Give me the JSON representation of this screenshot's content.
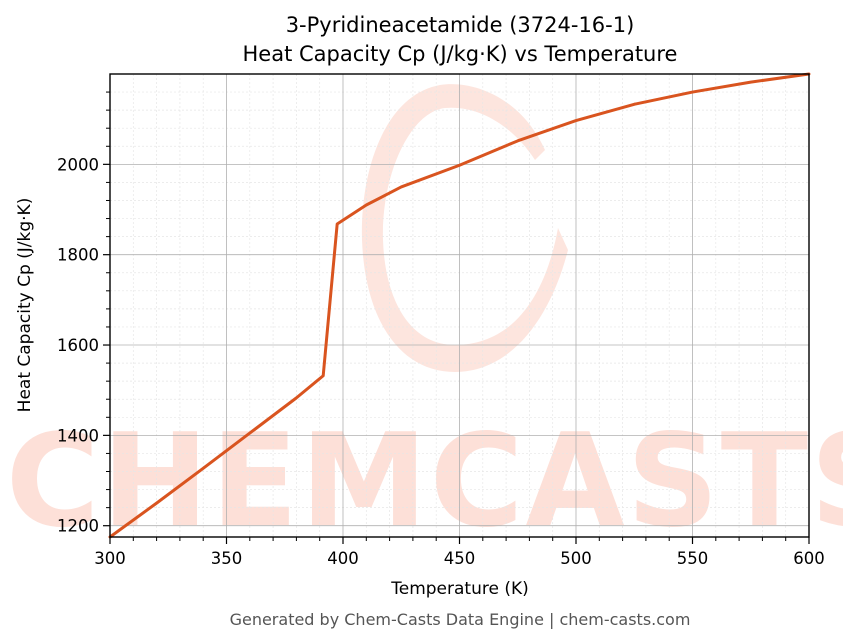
{
  "chart_data": {
    "type": "line",
    "title": "3-Pyridineacetamide (3724-16-1)",
    "subtitle": "Heat Capacity Cp (J/kg·K) vs Temperature",
    "xlabel": "Temperature (K)",
    "ylabel": "Heat Capacity Cp (J/kg·K)",
    "xlim": [
      300,
      600
    ],
    "ylim": [
      1175,
      2200
    ],
    "xticks": [
      300,
      350,
      400,
      450,
      500,
      550,
      600
    ],
    "yticks": [
      1200,
      1400,
      1600,
      1800,
      2000
    ],
    "grid": true,
    "series": [
      {
        "color": "#d9541f",
        "x": [
          300,
          320,
          340,
          360,
          380,
          391.5,
          397.5,
          410,
          425,
          450,
          475,
          500,
          525,
          550,
          575,
          600
        ],
        "y": [
          1175,
          1250,
          1327,
          1405,
          1483,
          1532,
          1868,
          1910,
          1950,
          1998,
          2052,
          2097,
          2133,
          2160,
          2182,
          2200
        ]
      }
    ]
  },
  "watermark": {
    "text": "CHEMCASTS",
    "color": "#fde0d8"
  },
  "footer": "Generated by Chem-Casts Data Engine | chem-casts.com"
}
